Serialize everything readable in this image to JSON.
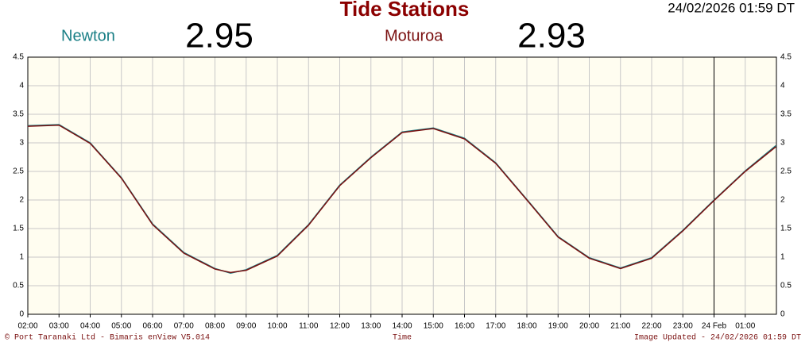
{
  "chart_data": {
    "type": "line",
    "title": "Tide Stations",
    "timestamp": "24/02/2026 01:59 DT",
    "x_label": "Time",
    "copyright": "© Port Taranaki Ltd - Bimaris enView V5.014",
    "updated": "Image Updated - 24/02/2026 01:59 DT",
    "x": [
      2,
      3,
      4,
      5,
      6,
      7,
      8,
      8.5,
      9,
      10,
      11,
      12,
      13,
      14,
      15,
      16,
      17,
      18,
      19,
      20,
      21,
      22,
      23,
      24,
      25,
      25.98
    ],
    "series": [
      {
        "name": "Newton",
        "color": "#1a7f86",
        "latest": 2.95,
        "values": [
          3.3,
          3.32,
          3.0,
          2.39,
          1.58,
          1.08,
          0.8,
          0.72,
          0.78,
          1.03,
          1.57,
          2.26,
          2.75,
          3.19,
          3.26,
          3.08,
          2.65,
          2.01,
          1.36,
          0.99,
          0.81,
          0.99,
          1.47,
          2.0,
          2.51,
          2.95
        ]
      },
      {
        "name": "Moturoa",
        "color": "#7a1010",
        "latest": 2.93,
        "values": [
          3.29,
          3.31,
          2.99,
          2.38,
          1.57,
          1.07,
          0.79,
          0.73,
          0.77,
          1.02,
          1.56,
          2.25,
          2.74,
          3.18,
          3.25,
          3.07,
          2.64,
          2.0,
          1.35,
          0.98,
          0.8,
          0.98,
          1.46,
          1.99,
          2.5,
          2.93
        ]
      }
    ],
    "xlim": [
      2,
      26
    ],
    "xticks": [
      {
        "value": 2,
        "label": "02:00"
      },
      {
        "value": 3,
        "label": "03:00"
      },
      {
        "value": 4,
        "label": "04:00"
      },
      {
        "value": 5,
        "label": "05:00"
      },
      {
        "value": 6,
        "label": "06:00"
      },
      {
        "value": 7,
        "label": "07:00"
      },
      {
        "value": 8,
        "label": "08:00"
      },
      {
        "value": 9,
        "label": "09:00"
      },
      {
        "value": 10,
        "label": "10:00"
      },
      {
        "value": 11,
        "label": "11:00"
      },
      {
        "value": 12,
        "label": "12:00"
      },
      {
        "value": 13,
        "label": "13:00"
      },
      {
        "value": 14,
        "label": "14:00"
      },
      {
        "value": 15,
        "label": "15:00"
      },
      {
        "value": 16,
        "label": "16:00"
      },
      {
        "value": 17,
        "label": "17:00"
      },
      {
        "value": 18,
        "label": "18:00"
      },
      {
        "value": 19,
        "label": "19:00"
      },
      {
        "value": 20,
        "label": "20:00"
      },
      {
        "value": 21,
        "label": "21:00"
      },
      {
        "value": 22,
        "label": "22:00"
      },
      {
        "value": 23,
        "label": "23:00"
      },
      {
        "value": 24,
        "label": "24 Feb"
      },
      {
        "value": 25,
        "label": "01:00"
      }
    ],
    "ylim": [
      0,
      4.5
    ],
    "yticks": [
      0,
      0.5,
      1,
      1.5,
      2,
      2.5,
      3,
      3.5,
      4,
      4.5
    ],
    "day_break": 24,
    "grid": true
  }
}
